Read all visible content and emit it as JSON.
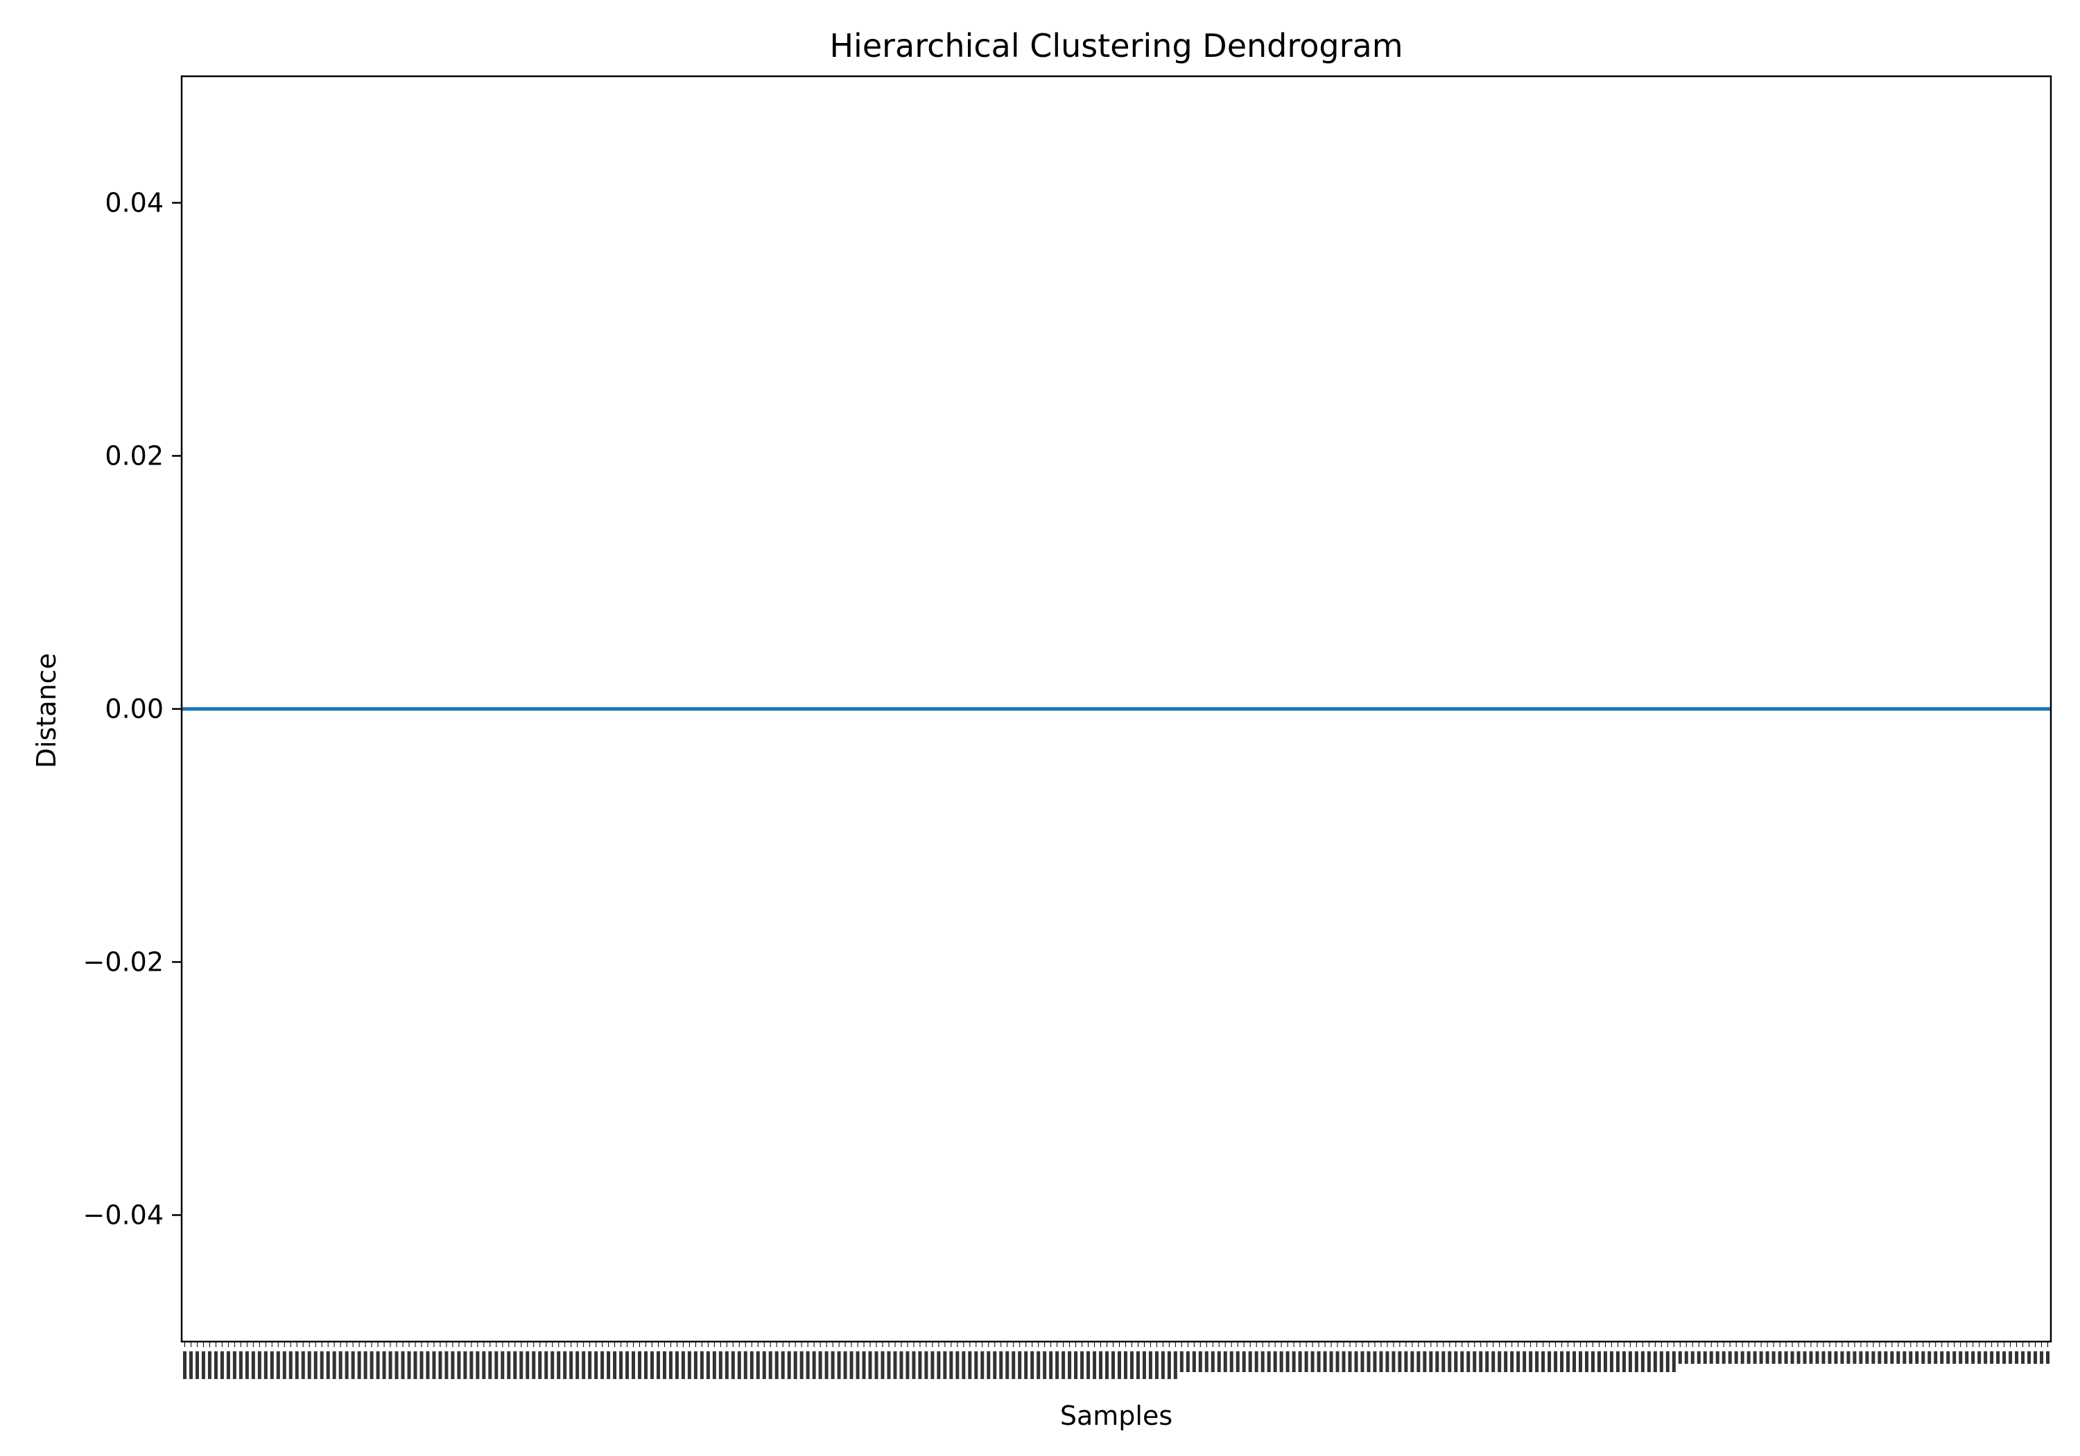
{
  "chart_data": {
    "type": "line",
    "title": "Hierarchical Clustering Dendrogram",
    "xlabel": "Samples",
    "ylabel": "Distance",
    "ylim": [
      -0.05,
      0.05
    ],
    "yticks": [
      {
        "value": 0.04,
        "label": "0.04"
      },
      {
        "value": 0.02,
        "label": "0.02"
      },
      {
        "value": 0.0,
        "label": "0.00"
      },
      {
        "value": -0.02,
        "label": "−0.02"
      },
      {
        "value": -0.04,
        "label": "−0.04"
      }
    ],
    "grid": false,
    "series": [
      {
        "color": "#1f77b4",
        "x": [
          0,
          1
        ],
        "y": [
          0.0,
          0.0
        ]
      }
    ],
    "sample_labels_legible": false
  }
}
